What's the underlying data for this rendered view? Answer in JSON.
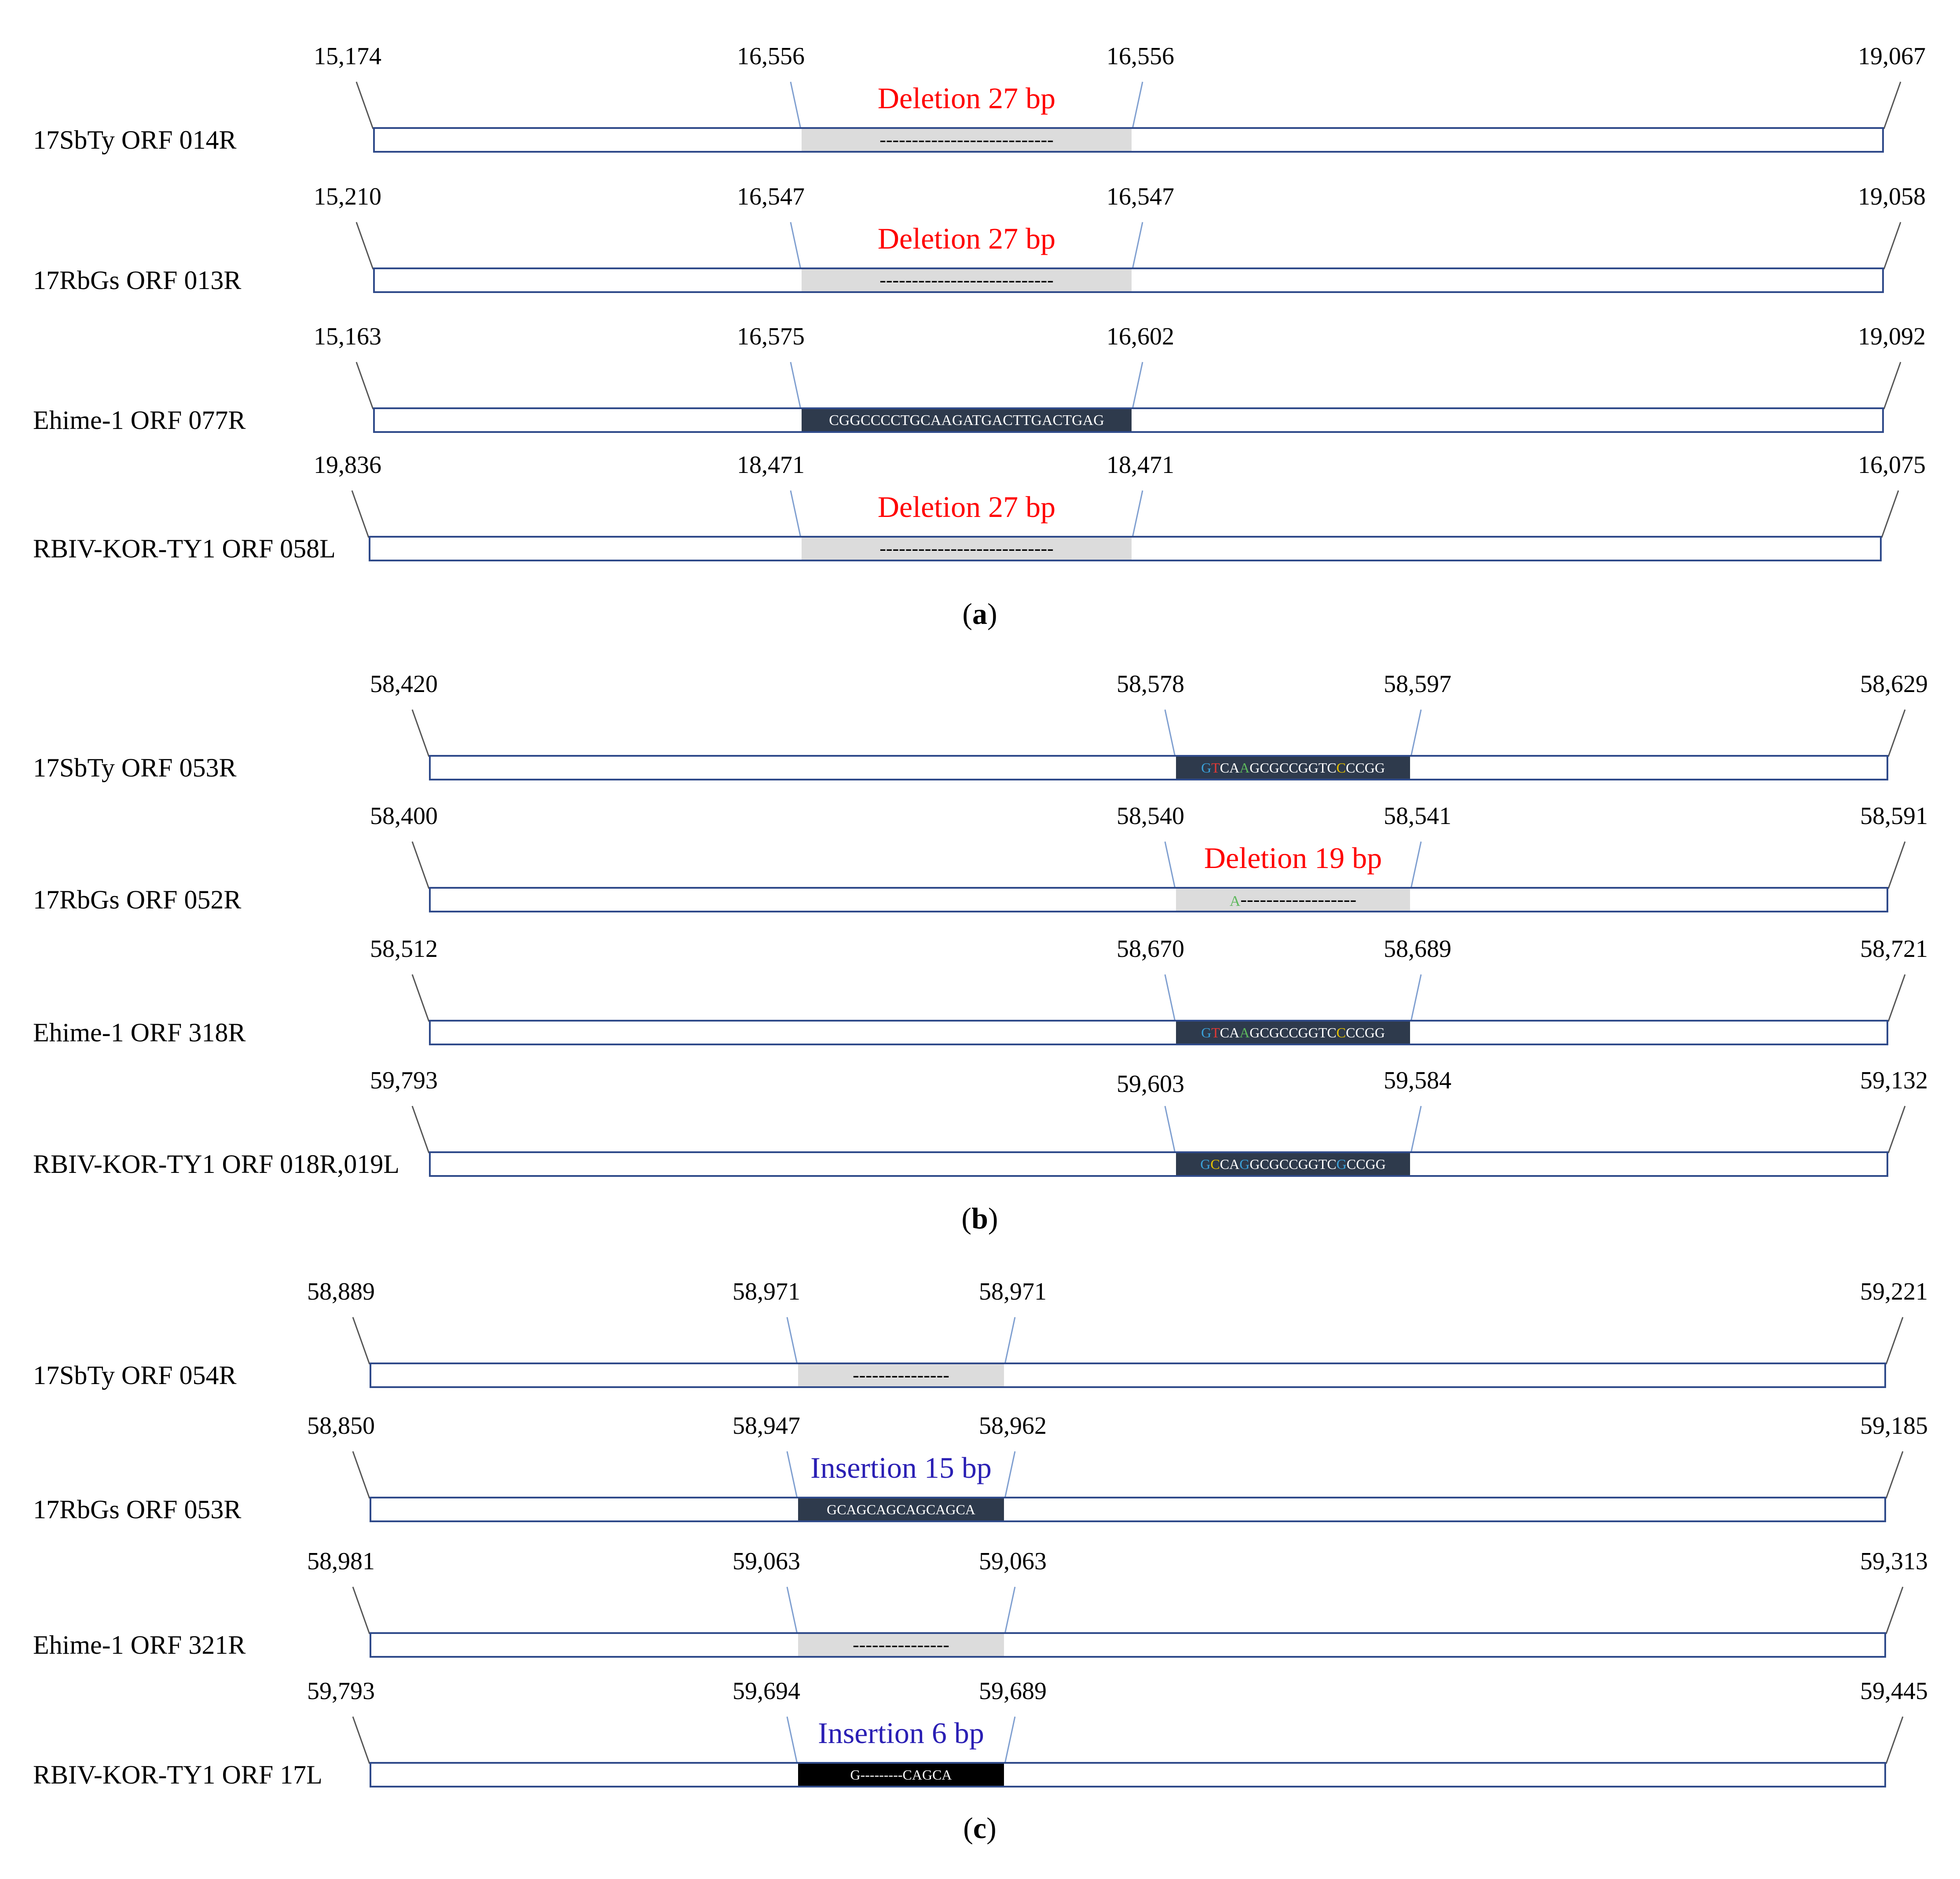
{
  "panels": [
    {
      "label": "a",
      "rows": [
        {
          "name": "17SbTy ORF 014R",
          "start": "15,174",
          "varL": "16,556",
          "varR": "16,556",
          "end": "19,067",
          "box": "gray",
          "box_text": "---------------------------",
          "annotation": "Deletion 27 bp",
          "annotation_type": "deletion"
        },
        {
          "name": "17RbGs ORF 013R",
          "start": "15,210",
          "varL": "16,547",
          "varR": "16,547",
          "end": "19,058",
          "box": "gray",
          "box_text": "---------------------------",
          "annotation": "Deletion 27 bp",
          "annotation_type": "deletion"
        },
        {
          "name": "Ehime-1 ORF 077R",
          "start": "15,163",
          "varL": "16,575",
          "varR": "16,602",
          "end": "19,092",
          "box": "dark",
          "box_text": "CGGCCCCTGCAAGATGACTTGACTGAG",
          "annotation": null
        },
        {
          "name": "RBIV-KOR-TY1 ORF 058L",
          "start": "19,836",
          "varL": "18,471",
          "varR": "18,471",
          "end": "16,075",
          "box": "gray",
          "box_text": "---------------------------",
          "annotation": "Deletion 27 bp",
          "annotation_type": "deletion"
        }
      ]
    },
    {
      "label": "b",
      "rows": [
        {
          "name": "17SbTy ORF 053R",
          "start": "58,420",
          "varL": "58,578",
          "varR": "58,597",
          "end": "58,629",
          "box": "dark",
          "box_text": "GTCAAGCGCCGGTCCCCGG",
          "annotation": null
        },
        {
          "name": "17RbGs ORF 052R",
          "start": "58,400",
          "varL": "58,540",
          "varR": "58,541",
          "end": "58,591",
          "box": "gray",
          "box_text": "A------------------",
          "annotation": "Deletion 19 bp",
          "annotation_type": "deletion"
        },
        {
          "name": "Ehime-1 ORF 318R",
          "start": "58,512",
          "varL": "58,670",
          "varR": "58,689",
          "end": "58,721",
          "box": "dark",
          "box_text": "GTCAAGCGCCGGTCCCCGG",
          "annotation": null
        },
        {
          "name": "RBIV-KOR-TY1 ORF 018R,019L",
          "start": "59,793",
          "varL": "59,603",
          "varR": "59,584",
          "end": "59,132",
          "box": "dark",
          "box_text": "GCCAGGCGCCGGTCGCCGG",
          "annotation": null
        }
      ]
    },
    {
      "label": "c",
      "rows": [
        {
          "name": "17SbTy ORF 054R",
          "start": "58,889",
          "varL": "58,971",
          "varR": "58,971",
          "end": "59,221",
          "box": "gray",
          "box_text": "---------------",
          "annotation": null
        },
        {
          "name": "17RbGs ORF 053R",
          "start": "58,850",
          "varL": "58,947",
          "varR": "58,962",
          "end": "59,185",
          "box": "dark",
          "box_text": "GCAGCAGCAGCAGCA",
          "annotation": "Insertion 15 bp",
          "annotation_type": "insertion"
        },
        {
          "name": "Ehime-1 ORF 321R",
          "start": "58,981",
          "varL": "59,063",
          "varR": "59,063",
          "end": "59,313",
          "box": "gray",
          "box_text": "---------------",
          "annotation": null
        },
        {
          "name": "RBIV-KOR-TY1 ORF 17L",
          "start": "59,793",
          "varL": "59,694",
          "varR": "59,689",
          "end": "59,445",
          "box": "black",
          "box_text": "G---------CAGCA",
          "annotation": "Insertion 6 bp",
          "annotation_type": "insertion"
        }
      ]
    }
  ],
  "colors": {
    "frame": "#2f4a8a",
    "leader": "#7f9fd0",
    "gray_box": "#dcdcdc",
    "dark_box": "#2e3a4c",
    "black_box": "#000000",
    "deletion": "#ff0000",
    "insertion": "#2a1fb4",
    "nt_A": "#5db85c",
    "nt_C": "#e5c100",
    "nt_G": "#3aa0d8",
    "nt_T": "#e53935",
    "text": "#000000"
  }
}
